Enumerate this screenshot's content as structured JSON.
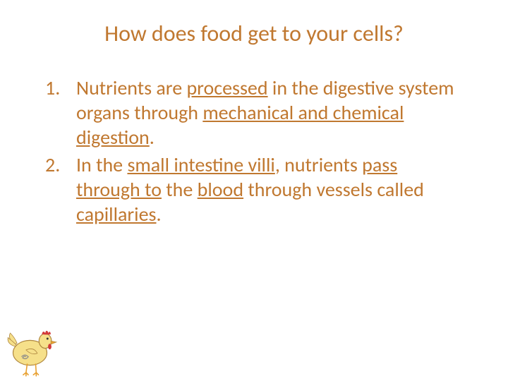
{
  "title": "How does food get to your cells?",
  "items": [
    {
      "num": "1.",
      "parts": [
        {
          "t": "Nutrients are ",
          "u": false
        },
        {
          "t": "processed",
          "u": true
        },
        {
          "t": " in the digestive system organs through ",
          "u": false
        },
        {
          "t": "mechanical and chemical digestion",
          "u": true
        },
        {
          "t": ".",
          "u": false
        }
      ]
    },
    {
      "num": "2.",
      "parts": [
        {
          "t": "In the ",
          "u": false
        },
        {
          "t": "small intestine villi",
          "u": true
        },
        {
          "t": ", nutrients ",
          "u": false
        },
        {
          "t": "pass through to",
          "u": true
        },
        {
          "t": " the ",
          "u": false
        },
        {
          "t": "blood",
          "u": true
        },
        {
          "t": " through vessels called ",
          "u": false
        },
        {
          "t": "capillaries",
          "u": true
        },
        {
          "t": ".",
          "u": false
        }
      ]
    }
  ],
  "colors": {
    "text": "#c07830",
    "background": "#ffffff"
  },
  "fontsize": {
    "title": 32,
    "body": 28
  },
  "illustration": {
    "name": "chicken-cartoon",
    "body_fill": "#f6e08a",
    "outline": "#b08840",
    "comb": "#d23a3a",
    "beak": "#e8a030",
    "legs": "#e8a030",
    "eye": "#333333",
    "swirl": "#8a8a8a"
  }
}
